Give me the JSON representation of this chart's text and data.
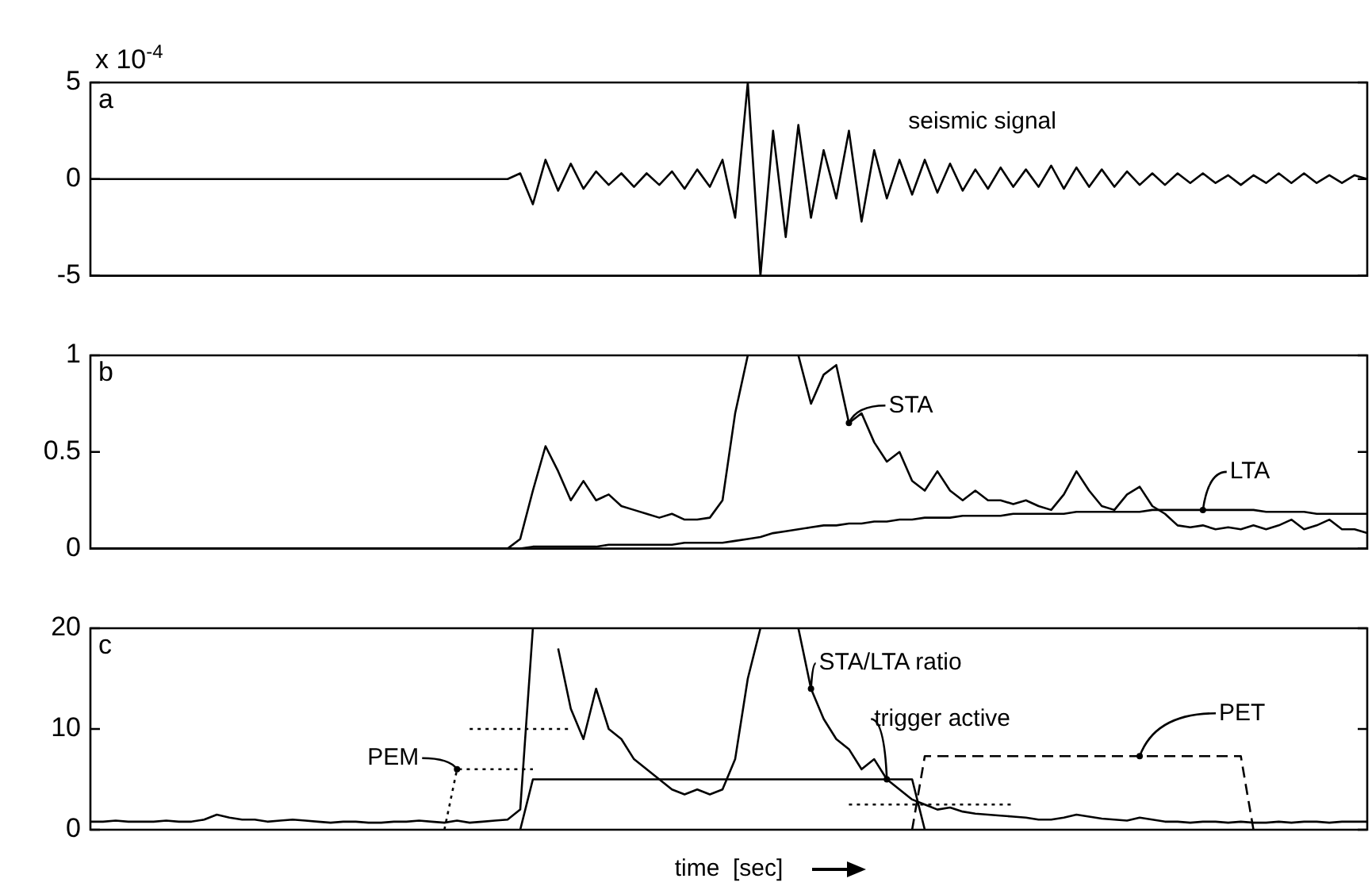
{
  "chart_data": [
    {
      "type": "line",
      "title": "a",
      "annotations": [
        "x 10$^{-4}$"
      ],
      "grid": false,
      "tick_labels": "y",
      "categories": [
        null,
        null,
        null,
        null,
        null,
        null,
        null,
        null,
        null,
        null,
        null,
        null,
        null,
        null,
        null,
        null,
        null,
        null,
        null,
        null,
        null,
        null,
        null,
        null,
        null,
        null,
        null,
        null,
        null,
        null,
        null,
        null,
        null,
        null,
        null,
        null,
        null,
        null,
        null,
        null,
        null,
        null,
        null,
        null,
        null,
        null,
        null,
        null,
        null,
        null,
        null,
        null,
        null,
        null,
        null,
        null,
        null,
        null,
        null,
        null,
        null,
        null,
        null,
        null,
        null,
        null,
        null,
        null,
        null,
        null,
        null,
        null,
        null,
        null,
        null,
        null,
        null,
        null,
        null,
        null,
        null,
        null,
        null,
        null,
        null,
        null,
        null,
        null,
        null,
        null,
        null,
        null,
        null,
        null,
        null,
        null,
        null,
        null,
        null,
        null,
        null,
        null
      ],
      "ylim": [
        -5,
        5
      ],
      "yticks": [
        -5,
        0,
        5
      ],
      "series": [
        {
          "name": "seismic signal",
          "color": "#000000",
          "values": [
            0,
            0,
            0,
            0,
            0,
            0,
            0,
            0,
            0,
            0,
            0,
            0,
            0,
            0,
            0,
            0,
            0,
            0,
            0,
            0,
            0,
            0,
            0,
            0,
            0,
            0,
            0,
            0,
            0,
            0,
            0,
            0,
            0,
            0,
            0.3,
            -1.3,
            1.0,
            -0.6,
            0.8,
            -0.5,
            0.4,
            -0.3,
            0.3,
            -0.4,
            0.3,
            -0.3,
            0.4,
            -0.5,
            0.5,
            -0.4,
            1.0,
            -2.0,
            5,
            -5,
            2.5,
            -3.0,
            2.8,
            -2.0,
            1.5,
            -1.0,
            2.5,
            -2.2,
            1.5,
            -1.0,
            1.0,
            -0.8,
            1.0,
            -0.7,
            0.8,
            -0.6,
            0.5,
            -0.5,
            0.6,
            -0.4,
            0.5,
            -0.4,
            0.7,
            -0.5,
            0.6,
            -0.4,
            0.5,
            -0.4,
            0.4,
            -0.3,
            0.3,
            -0.3,
            0.3,
            -0.2,
            0.3,
            -0.2,
            0.2,
            -0.3,
            0.2,
            -0.2,
            0.3,
            -0.2,
            0.3,
            -0.2,
            0.2,
            -0.2,
            0.2,
            0
          ]
        }
      ]
    },
    {
      "type": "line",
      "title": "b",
      "grid": false,
      "tick_labels": "y",
      "categories": [
        null,
        null,
        null,
        null,
        null,
        null,
        null,
        null,
        null,
        null,
        null,
        null,
        null,
        null,
        null,
        null,
        null,
        null,
        null,
        null,
        null,
        null,
        null,
        null,
        null,
        null,
        null,
        null,
        null,
        null,
        null,
        null,
        null,
        null,
        null,
        null,
        null,
        null,
        null,
        null,
        null,
        null,
        null,
        null,
        null,
        null,
        null,
        null,
        null,
        null,
        null,
        null,
        null,
        null,
        null,
        null,
        null,
        null,
        null,
        null,
        null,
        null,
        null,
        null,
        null,
        null,
        null,
        null,
        null,
        null,
        null,
        null,
        null,
        null,
        null,
        null,
        null,
        null,
        null,
        null,
        null,
        null,
        null,
        null,
        null,
        null,
        null,
        null,
        null,
        null,
        null,
        null,
        null,
        null,
        null,
        null,
        null,
        null,
        null,
        null,
        null,
        null
      ],
      "ylim": [
        0,
        1
      ],
      "yticks": [
        0,
        0.5,
        1
      ],
      "series": [
        {
          "name": "STA",
          "color": "#000000",
          "values": [
            0,
            0,
            0,
            0,
            0,
            0,
            0,
            0,
            0,
            0,
            0,
            0,
            0,
            0,
            0,
            0,
            0,
            0,
            0,
            0,
            0,
            0,
            0,
            0,
            0,
            0,
            0,
            0,
            0,
            0,
            0,
            0,
            0,
            0,
            0.05,
            0.3,
            0.53,
            0.4,
            0.25,
            0.35,
            0.25,
            0.28,
            0.22,
            0.2,
            0.18,
            0.16,
            0.18,
            0.15,
            0.15,
            0.16,
            0.25,
            0.7,
            1,
            null,
            null,
            null,
            1,
            0.75,
            0.9,
            0.95,
            0.65,
            0.7,
            0.55,
            0.45,
            0.5,
            0.35,
            0.3,
            0.4,
            0.3,
            0.25,
            0.3,
            0.25,
            0.25,
            0.23,
            0.25,
            0.22,
            0.2,
            0.28,
            0.4,
            0.3,
            0.22,
            0.2,
            0.28,
            0.32,
            0.22,
            0.18,
            0.12,
            0.11,
            0.12,
            0.1,
            0.11,
            0.1,
            0.12,
            0.1,
            0.12,
            0.15,
            0.1,
            0.12,
            0.15,
            0.1,
            0.1,
            0.08
          ]
        },
        {
          "name": "LTA",
          "color": "#000000",
          "values": [
            0,
            0,
            0,
            0,
            0,
            0,
            0,
            0,
            0,
            0,
            0,
            0,
            0,
            0,
            0,
            0,
            0,
            0,
            0,
            0,
            0,
            0,
            0,
            0,
            0,
            0,
            0,
            0,
            0,
            0,
            0,
            0,
            0,
            0,
            0,
            0.01,
            0.01,
            0.01,
            0.01,
            0.01,
            0.01,
            0.02,
            0.02,
            0.02,
            0.02,
            0.02,
            0.02,
            0.03,
            0.03,
            0.03,
            0.03,
            0.04,
            0.05,
            0.06,
            0.08,
            0.09,
            0.1,
            0.11,
            0.12,
            0.12,
            0.13,
            0.13,
            0.14,
            0.14,
            0.15,
            0.15,
            0.16,
            0.16,
            0.16,
            0.17,
            0.17,
            0.17,
            0.17,
            0.18,
            0.18,
            0.18,
            0.18,
            0.18,
            0.19,
            0.19,
            0.19,
            0.19,
            0.19,
            0.19,
            0.2,
            0.2,
            0.2,
            0.2,
            0.2,
            0.2,
            0.2,
            0.2,
            0.2,
            0.19,
            0.19,
            0.19,
            0.19,
            0.18,
            0.18,
            0.18,
            0.18,
            0.18
          ]
        }
      ]
    },
    {
      "type": "line",
      "title": "c",
      "xlabel": "time  [sec]",
      "grid": false,
      "tick_labels": "y",
      "categories": [
        null,
        null,
        null,
        null,
        null,
        null,
        null,
        null,
        null,
        null,
        null,
        null,
        null,
        null,
        null,
        null,
        null,
        null,
        null,
        null,
        null,
        null,
        null,
        null,
        null,
        null,
        null,
        null,
        null,
        null,
        null,
        null,
        null,
        null,
        null,
        null,
        null,
        null,
        null,
        null,
        null,
        null,
        null,
        null,
        null,
        null,
        null,
        null,
        null,
        null,
        null,
        null,
        null,
        null,
        null,
        null,
        null,
        null,
        null,
        null,
        null,
        null,
        null,
        null,
        null,
        null,
        null,
        null,
        null,
        null,
        null,
        null,
        null,
        null,
        null,
        null,
        null,
        null,
        null,
        null,
        null,
        null,
        null,
        null,
        null,
        null,
        null,
        null,
        null,
        null,
        null,
        null,
        null,
        null,
        null,
        null,
        null,
        null,
        null,
        null,
        null,
        null
      ],
      "ylim": [
        0,
        20
      ],
      "yticks": [
        0,
        10,
        20
      ],
      "series": [
        {
          "name": "STA/LTA ratio",
          "color": "#000000",
          "line_style": "solid",
          "values": [
            0.8,
            0.8,
            0.9,
            0.8,
            0.8,
            0.8,
            0.9,
            0.8,
            0.8,
            1.0,
            1.5,
            1.2,
            1.0,
            1.0,
            0.8,
            0.9,
            1.0,
            0.9,
            0.8,
            0.7,
            0.8,
            0.8,
            0.7,
            0.7,
            0.8,
            0.8,
            0.9,
            0.8,
            0.7,
            0.9,
            0.7,
            0.8,
            0.9,
            1.0,
            2,
            20,
            null,
            18,
            12,
            9,
            14,
            10,
            9,
            7,
            6,
            5,
            4,
            3.5,
            4,
            3.5,
            4,
            7,
            15,
            20,
            null,
            null,
            20,
            14,
            11,
            9,
            8,
            6,
            7,
            5,
            4,
            3,
            2.5,
            2,
            2.2,
            1.8,
            1.6,
            1.5,
            1.4,
            1.3,
            1.2,
            1.0,
            1.0,
            1.2,
            1.5,
            1.3,
            1.1,
            1.0,
            0.9,
            1.2,
            1.0,
            0.8,
            0.8,
            0.7,
            0.8,
            0.8,
            0.7,
            0.8,
            0.7,
            0.7,
            0.8,
            0.7,
            0.8,
            0.8,
            0.7,
            0.8,
            0.8,
            0.8
          ]
        },
        {
          "name": "trigger active",
          "color": "#000000",
          "line_style": "solid",
          "values": [
            null,
            null,
            null,
            null,
            null,
            null,
            null,
            null,
            null,
            null,
            null,
            null,
            null,
            null,
            null,
            null,
            null,
            null,
            null,
            null,
            null,
            null,
            null,
            null,
            null,
            null,
            null,
            null,
            null,
            null,
            null,
            null,
            null,
            null,
            0,
            5,
            5,
            5,
            5,
            5,
            5,
            5,
            5,
            5,
            5,
            5,
            5,
            5,
            5,
            5,
            5,
            5,
            5,
            5,
            5,
            5,
            5,
            5,
            5,
            5,
            5,
            5,
            5,
            5,
            5,
            5,
            0,
            null,
            null,
            null,
            null,
            null,
            null,
            null,
            null,
            null,
            null,
            null,
            null,
            null,
            null,
            null,
            null,
            null,
            null,
            null,
            null,
            null,
            null,
            null,
            null,
            null,
            null,
            null,
            null,
            null,
            null,
            null,
            null,
            null,
            null,
            null
          ]
        },
        {
          "name": "PEM",
          "color": "#000000",
          "line_style": "dotted",
          "values": [
            null,
            null,
            null,
            null,
            null,
            null,
            null,
            null,
            null,
            null,
            null,
            null,
            null,
            null,
            null,
            null,
            null,
            null,
            null,
            null,
            null,
            null,
            null,
            null,
            null,
            null,
            null,
            null,
            0,
            6,
            6,
            6,
            6,
            6,
            6,
            6,
            null,
            null,
            null,
            null,
            null,
            null,
            null,
            null,
            null,
            null,
            null,
            null,
            null,
            null,
            null,
            null,
            null,
            null,
            null,
            null,
            null,
            null,
            null,
            null,
            null,
            null,
            null,
            null,
            null,
            null,
            null,
            null,
            null,
            null,
            null,
            null,
            null,
            null,
            null,
            null,
            null,
            null,
            null,
            null,
            null,
            null,
            null,
            null,
            null,
            null,
            null,
            null,
            null,
            null,
            null,
            null,
            null,
            null,
            null,
            null,
            null,
            null,
            null,
            null,
            null,
            null
          ]
        },
        {
          "color": "#000000",
          "line_style": "dotted",
          "values": [
            null,
            null,
            null,
            null,
            null,
            null,
            null,
            null,
            null,
            null,
            null,
            null,
            null,
            null,
            null,
            null,
            null,
            null,
            null,
            null,
            null,
            null,
            null,
            null,
            null,
            null,
            null,
            null,
            null,
            null,
            10,
            10,
            10,
            10,
            10,
            10,
            10,
            10,
            10,
            null,
            null,
            null,
            null,
            null,
            null,
            null,
            null,
            null,
            null,
            null,
            null,
            null,
            null,
            null,
            null,
            null,
            null,
            null,
            null,
            null,
            null,
            null,
            null,
            null,
            null,
            null,
            null,
            null,
            null,
            null,
            null,
            null,
            null,
            null,
            null,
            null,
            null,
            null,
            null,
            null,
            null,
            null,
            null,
            null,
            null,
            null,
            null,
            null,
            null,
            null,
            null,
            null,
            null,
            null,
            null,
            null,
            null,
            null,
            null,
            null,
            null,
            null
          ]
        },
        {
          "color": "#000000",
          "line_style": "dotted",
          "values": [
            null,
            null,
            null,
            null,
            null,
            null,
            null,
            null,
            null,
            null,
            null,
            null,
            null,
            null,
            null,
            null,
            null,
            null,
            null,
            null,
            null,
            null,
            null,
            null,
            null,
            null,
            null,
            null,
            null,
            null,
            null,
            null,
            null,
            null,
            null,
            null,
            null,
            null,
            null,
            null,
            null,
            null,
            null,
            null,
            null,
            null,
            null,
            null,
            null,
            null,
            null,
            null,
            null,
            null,
            null,
            null,
            null,
            null,
            null,
            null,
            2.5,
            2.5,
            2.5,
            2.5,
            2.5,
            2.5,
            2.5,
            2.5,
            2.5,
            2.5,
            2.5,
            2.5,
            2.5,
            2.5,
            null,
            null,
            null,
            null,
            null,
            null,
            null,
            null,
            null,
            null,
            null,
            null,
            null,
            null,
            null,
            null,
            null,
            null,
            null,
            null,
            null,
            null,
            null,
            null,
            null,
            null,
            null,
            null
          ]
        },
        {
          "name": "PET",
          "color": "#000000",
          "line_style": "dashed",
          "values": [
            null,
            null,
            null,
            null,
            null,
            null,
            null,
            null,
            null,
            null,
            null,
            null,
            null,
            null,
            null,
            null,
            null,
            null,
            null,
            null,
            null,
            null,
            null,
            null,
            null,
            null,
            null,
            null,
            null,
            null,
            null,
            null,
            null,
            null,
            null,
            null,
            null,
            null,
            null,
            null,
            null,
            null,
            null,
            null,
            null,
            null,
            null,
            null,
            null,
            null,
            null,
            null,
            null,
            null,
            null,
            null,
            null,
            null,
            null,
            null,
            null,
            null,
            null,
            null,
            null,
            0,
            7.3,
            7.3,
            7.3,
            7.3,
            7.3,
            7.3,
            7.3,
            7.3,
            7.3,
            7.3,
            7.3,
            7.3,
            7.3,
            7.3,
            7.3,
            7.3,
            7.3,
            7.3,
            7.3,
            7.3,
            7.3,
            7.3,
            7.3,
            7.3,
            7.3,
            7.3,
            0,
            null,
            null,
            null,
            null,
            null,
            null,
            null,
            null,
            null
          ]
        }
      ]
    }
  ]
}
